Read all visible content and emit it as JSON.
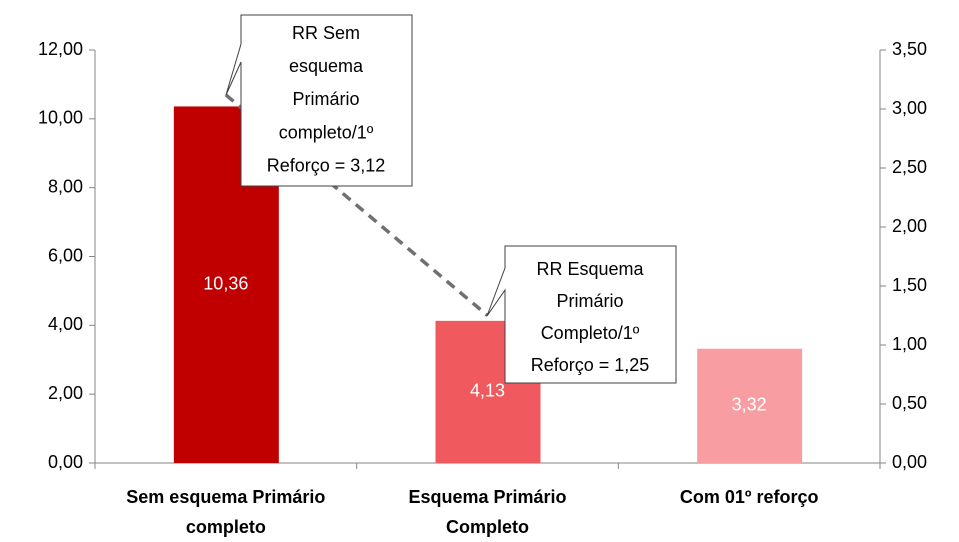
{
  "chart_data": {
    "type": "bar",
    "categories": [
      [
        "Sem esquema Primário",
        "completo"
      ],
      [
        "Esquema Primário",
        "Completo"
      ],
      [
        "Com 01º reforço"
      ]
    ],
    "values": [
      10.36,
      4.13,
      3.32
    ],
    "value_labels": [
      "10,36",
      "4,13",
      "3,32"
    ],
    "colors": [
      "#c00000",
      "#f05a5e",
      "#f89ea3"
    ],
    "ylim": [
      0,
      12
    ],
    "yticks": [
      {
        "value": 0,
        "label": "0,00"
      },
      {
        "value": 2,
        "label": "2,00"
      },
      {
        "value": 4,
        "label": "4,00"
      },
      {
        "value": 6,
        "label": "6,00"
      },
      {
        "value": 8,
        "label": "8,00"
      },
      {
        "value": 10,
        "label": "10,00"
      },
      {
        "value": 12,
        "label": "12,00"
      }
    ],
    "y2lim": [
      0,
      3.5
    ],
    "y2ticks": [
      {
        "value": 0,
        "label": "0,00"
      },
      {
        "value": 0.5,
        "label": "0,50"
      },
      {
        "value": 1,
        "label": "1,00"
      },
      {
        "value": 1.5,
        "label": "1,50"
      },
      {
        "value": 2,
        "label": "2,00"
      },
      {
        "value": 2.5,
        "label": "2,50"
      },
      {
        "value": 3,
        "label": "3,00"
      },
      {
        "value": 3.5,
        "label": "3,50"
      }
    ],
    "line": {
      "axis": "y2",
      "values": [
        3.12,
        1.25,
        null
      ],
      "color": "#707070",
      "dashed": true
    },
    "annotations": [
      [
        "RR Sem",
        "esquema",
        "Primário",
        "completo/1º",
        "Reforço = 3,12"
      ],
      [
        "RR Esquema",
        "Primário",
        "Completo/1º",
        "Reforço = 1,25"
      ]
    ]
  }
}
